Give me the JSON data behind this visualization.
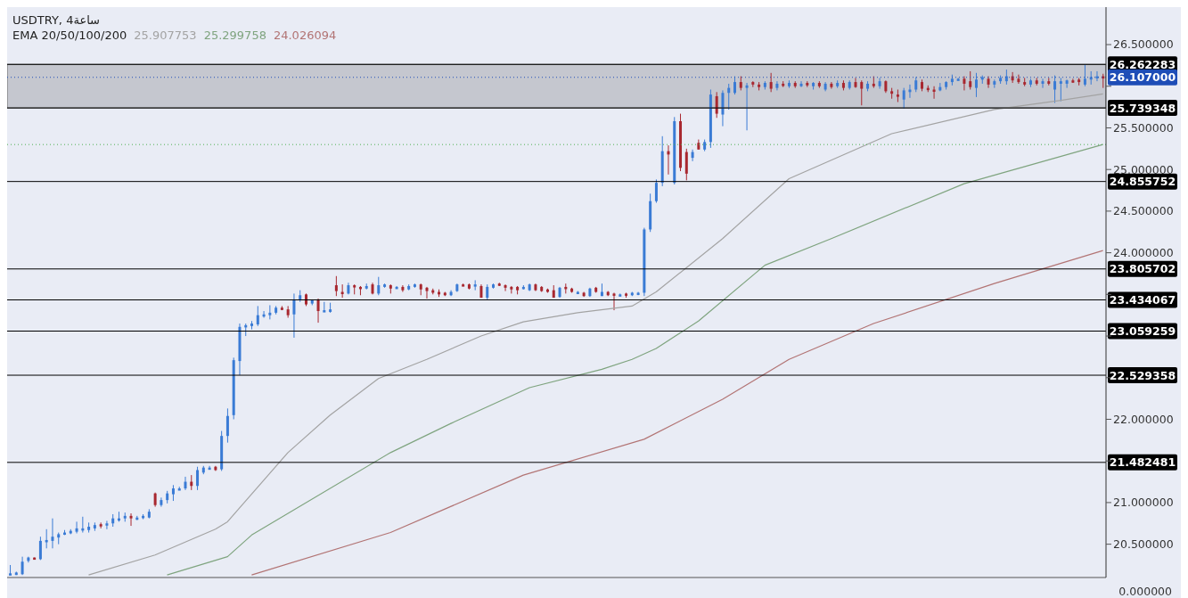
{
  "chart_data": {
    "type": "candlestick",
    "title": "USDTRY, 4ساعة",
    "legend_title": "EMA 20/50/100/200",
    "legend": "top",
    "tick_labels": "y",
    "categories": [
      null,
      null,
      null,
      null,
      null,
      null,
      null,
      null,
      null,
      null,
      null,
      null,
      null,
      null,
      null,
      null,
      null,
      null,
      null,
      null,
      null,
      null,
      null,
      null,
      null,
      null,
      null,
      null,
      null,
      null,
      null,
      null,
      null,
      null,
      null,
      null,
      null,
      null,
      null,
      null,
      null,
      null,
      null,
      null,
      null,
      null,
      null,
      null,
      null,
      null,
      null,
      null,
      null,
      null,
      null,
      null,
      null,
      null,
      null,
      null,
      null,
      null,
      null,
      null,
      null,
      null,
      null,
      null,
      null,
      null,
      null,
      null,
      null,
      null,
      null,
      null,
      null,
      null,
      null,
      null,
      null,
      null,
      null,
      null,
      null,
      null,
      null,
      null,
      null,
      null,
      null,
      null,
      null,
      null,
      null,
      null,
      null,
      null,
      null,
      null,
      null,
      null,
      null,
      null,
      null,
      null,
      null,
      null,
      null,
      null,
      null,
      null,
      null,
      null,
      null,
      null,
      null,
      null,
      null,
      null,
      null,
      null,
      null,
      null,
      null,
      null,
      null,
      null,
      null,
      null,
      null,
      null,
      null,
      null,
      null,
      null,
      null,
      null,
      null,
      null,
      null,
      null,
      null,
      null,
      null,
      null,
      null,
      null,
      null,
      null,
      null,
      null,
      null,
      null,
      null,
      null,
      null,
      null,
      null,
      null,
      null,
      null,
      null,
      null,
      null,
      null,
      null,
      null,
      null,
      null,
      null,
      null,
      null,
      null,
      null,
      null,
      null,
      null,
      null,
      null,
      null,
      null
    ],
    "ohlc": [
      [
        20.14,
        20.25,
        20.13,
        20.15
      ],
      [
        20.13,
        20.17,
        20.13,
        20.16
      ],
      [
        20.14,
        20.35,
        20.13,
        20.29
      ],
      [
        20.3,
        20.35,
        20.28,
        20.34
      ],
      [
        20.34,
        20.34,
        20.32,
        20.33
      ],
      [
        20.32,
        20.59,
        20.31,
        20.54
      ],
      [
        20.53,
        20.68,
        20.45,
        20.55
      ],
      [
        20.54,
        20.81,
        20.45,
        20.59
      ],
      [
        20.58,
        20.64,
        20.5,
        20.62
      ],
      [
        20.63,
        20.67,
        20.61,
        20.64
      ],
      [
        20.63,
        20.68,
        20.62,
        20.66
      ],
      [
        20.65,
        20.77,
        20.63,
        20.69
      ],
      [
        20.68,
        20.83,
        20.64,
        20.69
      ],
      [
        20.67,
        20.76,
        20.64,
        20.71
      ],
      [
        20.69,
        20.76,
        20.66,
        20.73
      ],
      [
        20.74,
        20.76,
        20.69,
        20.73
      ],
      [
        20.73,
        20.78,
        20.68,
        20.75
      ],
      [
        20.75,
        20.86,
        20.71,
        20.81
      ],
      [
        20.8,
        20.89,
        20.77,
        20.81
      ],
      [
        20.81,
        20.88,
        20.77,
        20.84
      ],
      [
        20.84,
        20.87,
        20.72,
        20.81
      ],
      [
        20.81,
        20.84,
        20.79,
        20.82
      ],
      [
        20.82,
        20.86,
        20.8,
        20.84
      ],
      [
        20.82,
        20.92,
        20.81,
        20.89
      ],
      [
        21.11,
        21.12,
        20.95,
        20.97
      ],
      [
        20.97,
        21.06,
        20.95,
        21.03
      ],
      [
        21.03,
        21.14,
        20.99,
        21.11
      ],
      [
        21.1,
        21.21,
        21.02,
        21.17
      ],
      [
        21.16,
        21.19,
        21.15,
        21.17
      ],
      [
        21.17,
        21.31,
        21.15,
        21.25
      ],
      [
        21.25,
        21.33,
        21.15,
        21.2
      ],
      [
        21.2,
        21.43,
        21.15,
        21.39
      ],
      [
        21.36,
        21.44,
        21.34,
        21.42
      ],
      [
        21.41,
        21.44,
        21.4,
        21.42
      ],
      [
        21.43,
        21.44,
        21.38,
        21.39
      ],
      [
        21.4,
        21.86,
        21.38,
        21.8
      ],
      [
        21.8,
        22.13,
        21.72,
        22.04
      ],
      [
        22.05,
        22.74,
        22.0,
        22.71
      ],
      [
        22.7,
        23.15,
        22.53,
        23.11
      ],
      [
        23.11,
        23.15,
        23.0,
        23.13
      ],
      [
        23.12,
        23.18,
        23.08,
        23.15
      ],
      [
        23.14,
        23.36,
        23.12,
        23.25
      ],
      [
        23.25,
        23.3,
        23.22,
        23.26
      ],
      [
        23.25,
        23.37,
        23.2,
        23.28
      ],
      [
        23.28,
        23.36,
        23.26,
        23.34
      ],
      [
        23.34,
        23.36,
        23.31,
        23.33
      ],
      [
        23.32,
        23.36,
        23.22,
        23.25
      ],
      [
        23.26,
        23.51,
        22.98,
        23.44
      ],
      [
        23.44,
        23.55,
        23.41,
        23.49
      ],
      [
        23.5,
        23.51,
        23.36,
        23.38
      ],
      [
        23.39,
        23.44,
        23.37,
        23.43
      ],
      [
        23.44,
        23.45,
        23.16,
        23.3
      ],
      [
        23.3,
        23.41,
        23.29,
        23.31
      ],
      [
        23.29,
        23.4,
        23.28,
        23.32
      ],
      [
        23.61,
        23.72,
        23.48,
        23.54
      ],
      [
        23.53,
        23.62,
        23.46,
        23.52
      ],
      [
        23.51,
        23.64,
        23.5,
        23.61
      ],
      [
        23.61,
        23.62,
        23.5,
        23.59
      ],
      [
        23.59,
        23.6,
        23.49,
        23.57
      ],
      [
        23.57,
        23.63,
        23.56,
        23.6
      ],
      [
        23.62,
        23.64,
        23.5,
        23.51
      ],
      [
        23.51,
        23.71,
        23.49,
        23.61
      ],
      [
        23.59,
        23.63,
        23.58,
        23.62
      ],
      [
        23.61,
        23.62,
        23.51,
        23.57
      ],
      [
        23.58,
        23.6,
        23.57,
        23.59
      ],
      [
        23.59,
        23.61,
        23.53,
        23.55
      ],
      [
        23.56,
        23.62,
        23.55,
        23.6
      ],
      [
        23.59,
        23.63,
        23.58,
        23.62
      ],
      [
        23.62,
        23.63,
        23.49,
        23.56
      ],
      [
        23.58,
        23.59,
        23.45,
        23.54
      ],
      [
        23.55,
        23.57,
        23.5,
        23.52
      ],
      [
        23.53,
        23.56,
        23.47,
        23.5
      ],
      [
        23.52,
        23.53,
        23.48,
        23.49
      ],
      [
        23.49,
        23.55,
        23.48,
        23.53
      ],
      [
        23.54,
        23.63,
        23.53,
        23.62
      ],
      [
        23.62,
        23.63,
        23.6,
        23.61
      ],
      [
        23.62,
        23.63,
        23.56,
        23.57
      ],
      [
        23.61,
        23.67,
        23.55,
        23.62
      ],
      [
        23.6,
        23.62,
        23.46,
        23.46
      ],
      [
        23.46,
        23.62,
        23.44,
        23.59
      ],
      [
        23.58,
        23.63,
        23.57,
        23.62
      ],
      [
        23.63,
        23.64,
        23.6,
        23.61
      ],
      [
        23.61,
        23.62,
        23.54,
        23.58
      ],
      [
        23.59,
        23.6,
        23.51,
        23.56
      ],
      [
        23.59,
        23.6,
        23.5,
        23.55
      ],
      [
        23.57,
        23.61,
        23.56,
        23.59
      ],
      [
        23.55,
        23.63,
        23.54,
        23.62
      ],
      [
        23.62,
        23.63,
        23.54,
        23.55
      ],
      [
        23.59,
        23.6,
        23.53,
        23.54
      ],
      [
        23.56,
        23.57,
        23.52,
        23.53
      ],
      [
        23.55,
        23.61,
        23.46,
        23.46
      ],
      [
        23.47,
        23.59,
        23.46,
        23.58
      ],
      [
        23.59,
        23.63,
        23.51,
        23.57
      ],
      [
        23.57,
        23.58,
        23.52,
        23.53
      ],
      [
        23.52,
        23.54,
        23.51,
        23.53
      ],
      [
        23.52,
        23.53,
        23.47,
        23.48
      ],
      [
        23.48,
        23.58,
        23.47,
        23.57
      ],
      [
        23.58,
        23.59,
        23.52,
        23.53
      ],
      [
        23.48,
        23.63,
        23.48,
        23.53
      ],
      [
        23.53,
        23.54,
        23.48,
        23.49
      ],
      [
        23.51,
        23.52,
        23.31,
        23.49
      ],
      [
        23.49,
        23.51,
        23.48,
        23.5
      ],
      [
        23.51,
        23.52,
        23.46,
        23.49
      ],
      [
        23.49,
        23.53,
        23.48,
        23.52
      ],
      [
        23.5,
        23.53,
        23.49,
        23.52
      ],
      [
        23.52,
        24.3,
        23.48,
        24.28
      ],
      [
        24.28,
        24.71,
        24.25,
        24.62
      ],
      [
        24.62,
        24.88,
        24.6,
        24.84
      ],
      [
        24.84,
        25.4,
        24.8,
        25.22
      ],
      [
        25.22,
        25.29,
        24.94,
        25.18
      ],
      [
        24.84,
        25.63,
        24.82,
        25.58
      ],
      [
        25.58,
        25.67,
        24.98,
        25.02
      ],
      [
        25.21,
        25.25,
        24.87,
        24.95
      ],
      [
        25.14,
        25.24,
        25.1,
        25.21
      ],
      [
        25.32,
        25.36,
        25.24,
        25.24
      ],
      [
        25.24,
        25.36,
        25.22,
        25.33
      ],
      [
        25.33,
        25.96,
        25.26,
        25.9
      ],
      [
        25.88,
        25.93,
        25.62,
        25.67
      ],
      [
        25.66,
        25.95,
        25.52,
        25.92
      ],
      [
        25.92,
        26.03,
        25.72,
        25.98
      ],
      [
        25.92,
        26.12,
        25.9,
        26.05
      ],
      [
        26.05,
        26.12,
        25.95,
        25.98
      ],
      [
        25.98,
        26.04,
        25.47,
        26.01
      ],
      [
        26.05,
        26.06,
        25.99,
        26.02
      ],
      [
        26.02,
        26.05,
        25.95,
        25.99
      ],
      [
        25.99,
        26.06,
        25.96,
        26.04
      ],
      [
        26.05,
        26.16,
        25.93,
        25.97
      ],
      [
        25.98,
        26.06,
        25.95,
        26.03
      ],
      [
        26.03,
        26.06,
        25.99,
        26.01
      ],
      [
        26.0,
        26.07,
        25.98,
        26.04
      ],
      [
        26.04,
        26.06,
        25.98,
        26.0
      ],
      [
        26.0,
        26.06,
        25.99,
        26.03
      ],
      [
        26.04,
        26.06,
        25.99,
        26.01
      ],
      [
        26.0,
        26.05,
        25.96,
        26.04
      ],
      [
        26.04,
        26.06,
        25.98,
        26.0
      ],
      [
        25.96,
        26.05,
        25.94,
        26.03
      ],
      [
        26.03,
        26.05,
        25.97,
        25.99
      ],
      [
        26.0,
        26.07,
        25.98,
        26.04
      ],
      [
        26.04,
        26.07,
        25.95,
        25.98
      ],
      [
        25.98,
        26.07,
        25.96,
        26.05
      ],
      [
        26.05,
        26.1,
        25.98,
        25.99
      ],
      [
        26.05,
        26.07,
        25.77,
        25.97
      ],
      [
        25.97,
        26.06,
        25.94,
        26.03
      ],
      [
        26.03,
        26.12,
        25.98,
        26.0
      ],
      [
        26.0,
        26.1,
        25.97,
        26.06
      ],
      [
        26.06,
        26.07,
        25.92,
        25.94
      ],
      [
        25.94,
        25.98,
        25.85,
        25.91
      ],
      [
        25.9,
        25.96,
        25.81,
        25.88
      ],
      [
        25.84,
        25.98,
        25.73,
        25.95
      ],
      [
        25.93,
        26.02,
        25.86,
        25.96
      ],
      [
        25.96,
        26.11,
        25.93,
        26.07
      ],
      [
        26.05,
        26.08,
        25.94,
        25.97
      ],
      [
        25.98,
        26.01,
        25.93,
        25.97
      ],
      [
        25.96,
        26.0,
        25.85,
        25.95
      ],
      [
        25.95,
        26.04,
        25.94,
        25.99
      ],
      [
        25.99,
        26.06,
        25.96,
        26.05
      ],
      [
        26.05,
        26.14,
        26.01,
        26.09
      ],
      [
        26.08,
        26.1,
        26.07,
        26.09
      ],
      [
        26.09,
        26.12,
        25.95,
        26.03
      ],
      [
        26.06,
        26.18,
        25.96,
        25.99
      ],
      [
        25.98,
        26.16,
        25.87,
        26.08
      ],
      [
        26.08,
        26.13,
        26.03,
        26.11
      ],
      [
        26.09,
        26.12,
        25.98,
        26.02
      ],
      [
        26.02,
        26.08,
        25.98,
        26.06
      ],
      [
        26.06,
        26.13,
        26.03,
        26.1
      ],
      [
        26.06,
        26.2,
        26.02,
        26.12
      ],
      [
        26.12,
        26.17,
        26.04,
        26.07
      ],
      [
        26.09,
        26.14,
        26.03,
        26.05
      ],
      [
        26.05,
        26.1,
        26.0,
        26.02
      ],
      [
        26.02,
        26.09,
        25.99,
        26.07
      ],
      [
        26.07,
        26.1,
        26.01,
        26.03
      ],
      [
        26.03,
        26.09,
        25.98,
        26.06
      ],
      [
        26.06,
        26.1,
        26.01,
        26.03
      ],
      [
        25.96,
        26.13,
        25.8,
        26.06
      ],
      [
        26.03,
        26.1,
        25.82,
        26.06
      ],
      [
        26.03,
        26.08,
        25.98,
        26.07
      ],
      [
        26.07,
        26.09,
        26.04,
        26.06
      ],
      [
        26.08,
        26.1,
        26.01,
        26.05
      ],
      [
        26.02,
        26.26,
        26.0,
        26.09
      ],
      [
        26.08,
        26.18,
        26.02,
        26.11
      ],
      [
        26.1,
        26.18,
        26.06,
        26.12
      ],
      [
        26.12,
        26.15,
        25.98,
        26.107
      ]
    ],
    "colors": [
      "#3a7bd5",
      "#3a7bd5",
      "#3a7bd5",
      "#3a7bd5",
      "#a8272f",
      "#3a7bd5",
      "#3a7bd5",
      "#3a7bd5",
      "#3a7bd5",
      "#3a7bd5",
      "#3a7bd5",
      "#3a7bd5",
      "#3a7bd5",
      "#3a7bd5",
      "#3a7bd5",
      "#a8272f",
      "#3a7bd5",
      "#3a7bd5",
      "#3a7bd5",
      "#3a7bd5",
      "#a8272f",
      "#3a7bd5",
      "#3a7bd5",
      "#3a7bd5",
      "#a8272f",
      "#3a7bd5",
      "#3a7bd5",
      "#3a7bd5",
      "#3a7bd5",
      "#3a7bd5",
      "#a8272f",
      "#3a7bd5",
      "#3a7bd5",
      "#3a7bd5",
      "#a8272f",
      "#3a7bd5",
      "#3a7bd5",
      "#3a7bd5",
      "#3a7bd5",
      "#3a7bd5",
      "#3a7bd5",
      "#3a7bd5",
      "#3a7bd5",
      "#3a7bd5",
      "#3a7bd5",
      "#a8272f",
      "#a8272f",
      "#3a7bd5",
      "#3a7bd5",
      "#a8272f",
      "#3a7bd5",
      "#a8272f",
      "#3a7bd5",
      "#3a7bd5",
      "#a8272f",
      "#a8272f",
      "#3a7bd5",
      "#a8272f",
      "#a8272f",
      "#3a7bd5",
      "#a8272f",
      "#3a7bd5",
      "#3a7bd5",
      "#a8272f",
      "#3a7bd5",
      "#a8272f",
      "#3a7bd5",
      "#3a7bd5",
      "#a8272f",
      "#a8272f",
      "#a8272f",
      "#a8272f",
      "#a8272f",
      "#3a7bd5",
      "#3a7bd5",
      "#a8272f",
      "#a8272f",
      "#3a7bd5",
      "#a8272f",
      "#3a7bd5",
      "#3a7bd5",
      "#a8272f",
      "#a8272f",
      "#a8272f",
      "#a8272f",
      "#3a7bd5",
      "#3a7bd5",
      "#a8272f",
      "#a8272f",
      "#a8272f",
      "#a8272f",
      "#3a7bd5",
      "#a8272f",
      "#a8272f",
      "#3a7bd5",
      "#a8272f",
      "#3a7bd5",
      "#a8272f",
      "#3a7bd5",
      "#a8272f",
      "#a8272f",
      "#3a7bd5",
      "#a8272f",
      "#3a7bd5",
      "#3a7bd5",
      "#3a7bd5",
      "#3a7bd5",
      "#3a7bd5",
      "#3a7bd5",
      "#a8272f",
      "#3a7bd5",
      "#a8272f",
      "#a8272f",
      "#3a7bd5",
      "#a8272f",
      "#3a7bd5",
      "#3a7bd5",
      "#a8272f",
      "#3a7bd5",
      "#3a7bd5",
      "#3a7bd5",
      "#a8272f",
      "#3a7bd5",
      "#a8272f",
      "#a8272f",
      "#3a7bd5",
      "#a8272f",
      "#3a7bd5",
      "#a8272f",
      "#3a7bd5",
      "#a8272f",
      "#3a7bd5",
      "#a8272f",
      "#3a7bd5",
      "#a8272f",
      "#3a7bd5",
      "#a8272f",
      "#3a7bd5",
      "#a8272f",
      "#3a7bd5",
      "#a8272f",
      "#a8272f",
      "#3a7bd5",
      "#a8272f",
      "#3a7bd5",
      "#a8272f",
      "#a8272f",
      "#a8272f",
      "#3a7bd5",
      "#3a7bd5",
      "#3a7bd5",
      "#a8272f",
      "#a8272f",
      "#a8272f",
      "#3a7bd5",
      "#3a7bd5",
      "#3a7bd5",
      "#3a7bd5",
      "#a8272f",
      "#a8272f",
      "#3a7bd5",
      "#3a7bd5",
      "#a8272f",
      "#3a7bd5",
      "#3a7bd5",
      "#3a7bd5",
      "#a8272f",
      "#a8272f",
      "#a8272f",
      "#3a7bd5",
      "#a8272f",
      "#3a7bd5",
      "#a8272f",
      "#3a7bd5",
      "#3a7bd5",
      "#3a7bd5",
      "#a8272f",
      "#a8272f",
      "#3a7bd5",
      "#3a7bd5",
      "#3a7bd5",
      "#a8272f"
    ],
    "series": [
      {
        "type": "line",
        "name": "25.907753",
        "color": "#a3a3a3",
        "values": [
          null,
          null,
          null,
          null,
          null,
          null,
          null,
          null,
          null,
          null,
          null,
          null,
          null,
          20.13,
          null,
          null,
          null,
          null,
          null,
          null,
          null,
          null,
          null,
          null,
          20.37,
          null,
          null,
          null,
          null,
          null,
          null,
          null,
          null,
          null,
          20.68,
          null,
          20.77,
          null,
          null,
          null,
          null,
          null,
          null,
          null,
          null,
          null,
          21.6,
          null,
          null,
          null,
          null,
          null,
          null,
          22.05,
          null,
          null,
          null,
          null,
          null,
          null,
          null,
          22.49,
          null,
          null,
          null,
          null,
          null,
          null,
          null,
          22.72,
          null,
          null,
          null,
          null,
          null,
          null,
          null,
          null,
          23.0,
          null,
          null,
          null,
          null,
          null,
          null,
          23.17,
          null,
          null,
          null,
          null,
          null,
          null,
          null,
          null,
          23.28,
          null,
          null,
          null,
          null,
          null,
          null,
          null,
          null,
          23.36,
          null,
          null,
          null,
          23.53,
          null,
          null,
          null,
          null,
          null,
          null,
          null,
          null,
          null,
          null,
          24.17,
          null,
          null,
          null,
          null,
          null,
          null,
          null,
          null,
          null,
          null,
          24.89,
          null,
          null,
          null,
          null,
          null,
          null,
          null,
          null,
          null,
          null,
          null,
          null,
          null,
          null,
          null,
          null,
          25.43,
          null,
          null,
          null,
          null,
          null,
          null,
          null,
          null,
          null,
          null,
          null,
          null,
          null,
          null,
          null,
          null,
          25.72,
          null,
          null,
          null,
          null,
          null,
          null,
          null,
          null,
          null,
          null,
          25.83,
          null,
          null,
          null,
          null,
          null,
          null,
          25.907753
        ]
      },
      {
        "type": "line",
        "name": "25.299758",
        "color": "#7fa47f",
        "values": [
          null,
          null,
          null,
          null,
          null,
          null,
          null,
          null,
          null,
          null,
          null,
          null,
          null,
          null,
          null,
          null,
          null,
          null,
          null,
          null,
          null,
          null,
          null,
          null,
          null,
          null,
          20.13,
          null,
          null,
          null,
          null,
          null,
          null,
          null,
          null,
          null,
          20.35,
          null,
          null,
          null,
          20.61,
          null,
          null,
          null,
          null,
          null,
          null,
          null,
          null,
          null,
          null,
          null,
          null,
          null,
          null,
          null,
          null,
          null,
          null,
          null,
          null,
          null,
          null,
          21.6,
          null,
          null,
          null,
          null,
          null,
          null,
          null,
          null,
          null,
          21.95,
          null,
          null,
          null,
          null,
          null,
          null,
          null,
          null,
          null,
          null,
          null,
          null,
          22.38,
          null,
          null,
          null,
          null,
          null,
          null,
          null,
          null,
          null,
          null,
          null,
          22.6,
          null,
          null,
          null,
          null,
          22.72,
          null,
          null,
          null,
          22.85,
          null,
          null,
          null,
          null,
          null,
          null,
          23.18,
          null,
          null,
          null,
          null,
          null,
          null,
          null,
          null,
          null,
          null,
          23.85,
          null,
          null,
          null,
          null,
          null,
          null,
          null,
          null,
          null,
          null,
          24.17,
          null,
          null,
          null,
          null,
          null,
          null,
          null,
          null,
          null,
          null,
          null,
          null,
          null,
          null,
          null,
          null,
          null,
          null,
          null,
          null,
          null,
          24.83,
          null,
          null,
          null,
          null,
          null,
          null,
          null,
          null,
          null,
          null,
          null,
          null,
          null,
          null,
          null,
          null,
          null,
          null,
          null,
          null,
          null,
          null,
          25.299758
        ]
      },
      {
        "type": "line",
        "name": "24.026094",
        "color": "#b27474",
        "values": [
          null,
          null,
          null,
          null,
          null,
          null,
          null,
          null,
          null,
          null,
          null,
          null,
          null,
          null,
          null,
          null,
          null,
          null,
          null,
          null,
          null,
          null,
          null,
          null,
          null,
          null,
          null,
          null,
          null,
          null,
          null,
          null,
          null,
          null,
          null,
          null,
          null,
          null,
          null,
          null,
          20.13,
          null,
          null,
          null,
          null,
          null,
          null,
          null,
          null,
          null,
          null,
          null,
          null,
          null,
          null,
          null,
          null,
          null,
          null,
          null,
          null,
          null,
          null,
          20.64,
          null,
          null,
          null,
          null,
          null,
          null,
          null,
          null,
          null,
          null,
          null,
          null,
          null,
          null,
          null,
          null,
          null,
          null,
          null,
          null,
          null,
          21.33,
          null,
          null,
          null,
          null,
          null,
          null,
          null,
          null,
          null,
          null,
          null,
          null,
          null,
          null,
          null,
          null,
          null,
          null,
          null,
          21.76,
          null,
          null,
          null,
          null,
          null,
          null,
          null,
          null,
          null,
          null,
          null,
          null,
          22.24,
          null,
          null,
          null,
          null,
          null,
          null,
          null,
          null,
          null,
          null,
          22.72,
          null,
          null,
          null,
          null,
          null,
          null,
          null,
          null,
          null,
          null,
          null,
          null,
          null,
          23.15,
          null,
          null,
          null,
          null,
          null,
          null,
          null,
          null,
          null,
          null,
          null,
          null,
          null,
          null,
          null,
          null,
          null,
          null,
          null,
          23.63,
          null,
          null,
          null,
          null,
          null,
          null,
          null,
          null,
          null,
          null,
          null,
          null,
          null,
          null,
          null,
          null,
          null,
          24.026094
        ]
      }
    ],
    "ylim": [
      20.1,
      26.95
    ],
    "yticks": [
      {
        "value": 20.5,
        "label": "20.500000"
      },
      {
        "value": 21,
        "label": "21.000000"
      },
      {
        "value": 21.5,
        "label": null
      },
      {
        "value": 22,
        "label": "22.000000"
      },
      {
        "value": 22.5,
        "label": null
      },
      {
        "value": 23,
        "label": null
      },
      {
        "value": 23.5,
        "label": null
      },
      {
        "value": 24,
        "label": "24.000000"
      },
      {
        "value": 24.5,
        "label": "24.500000"
      },
      {
        "value": 25,
        "label": "25.000000"
      },
      {
        "value": 25.5,
        "label": "25.500000"
      },
      {
        "value": 26,
        "label": null
      },
      {
        "value": 26.5,
        "label": "26.500000"
      }
    ],
    "bands": [
      {
        "axis": "y",
        "from": 25.739348,
        "to": 26.262283,
        "color": "#c3c5cc"
      }
    ],
    "ref_lines": [
      {
        "axis": "y",
        "value": 26.262283,
        "label": "26.262283",
        "color": "#000000"
      },
      {
        "axis": "y",
        "value": 25.739348,
        "label": "25.739348",
        "color": "#000000"
      },
      {
        "axis": "y",
        "value": 24.855752,
        "label": "24.855752",
        "color": "#000000"
      },
      {
        "axis": "y",
        "value": 23.805702,
        "label": "23.805702",
        "color": "#000000"
      },
      {
        "axis": "y",
        "value": 23.434067,
        "label": "23.434067",
        "color": "#000000"
      },
      {
        "axis": "y",
        "value": 23.059259,
        "label": "23.059259",
        "color": "#000000"
      },
      {
        "axis": "y",
        "value": 22.529358,
        "label": "22.529358",
        "color": "#000000"
      },
      {
        "axis": "y",
        "value": 21.482481,
        "label": "21.482481",
        "color": "#000000"
      },
      {
        "axis": "y",
        "value": 25.299758,
        "color": "#4caf50",
        "line_style": "dotted"
      },
      {
        "axis": "y",
        "value": 26.107,
        "label": "26.107000",
        "color": "#1e4db7",
        "line_style": "dotted"
      }
    ],
    "annotations": [
      "0.000000"
    ]
  }
}
